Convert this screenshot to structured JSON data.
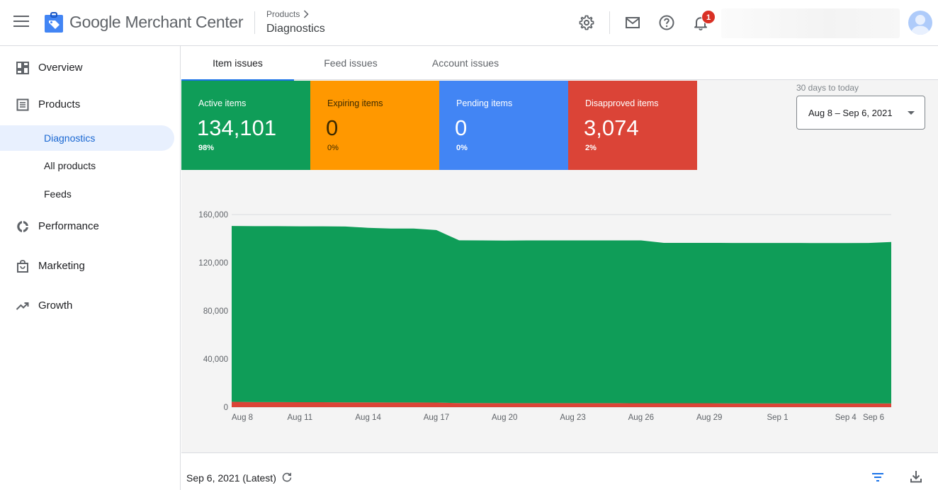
{
  "app": {
    "brand": "Google Merchant Center",
    "breadcrumb_parent": "Products",
    "breadcrumb_current": "Diagnostics",
    "notification_count": "1",
    "icons": [
      "menu-icon",
      "merchant-center-logo",
      "settings-icon",
      "mail-icon",
      "help-icon",
      "notifications-icon",
      "avatar"
    ]
  },
  "sidebar": {
    "items": [
      {
        "label": "Overview",
        "icon": "dashboard-icon"
      },
      {
        "label": "Products",
        "icon": "list-icon"
      },
      {
        "label": "Diagnostics",
        "sub": true,
        "active": true
      },
      {
        "label": "All products",
        "sub": true
      },
      {
        "label": "Feeds",
        "sub": true
      },
      {
        "label": "Performance",
        "icon": "donut-chart-icon"
      },
      {
        "label": "Marketing",
        "icon": "shopping-bag-icon"
      },
      {
        "label": "Growth",
        "icon": "trending-up-icon"
      }
    ]
  },
  "tabs": [
    "Item issues",
    "Feed issues",
    "Account issues"
  ],
  "active_tab": "Item issues",
  "cards": [
    {
      "title": "Active items",
      "value": "134,101",
      "pct": "98%",
      "color": "#0f9d58"
    },
    {
      "title": "Expiring items",
      "value": "0",
      "pct": "0%",
      "color": "#ff9800"
    },
    {
      "title": "Pending items",
      "value": "0",
      "pct": "0%",
      "color": "#4285f4"
    },
    {
      "title": "Disapproved items",
      "value": "3,074",
      "pct": "2%",
      "color": "#db4437"
    }
  ],
  "date_range": {
    "caption": "30 days to today",
    "value": "Aug 8 – Sep 6, 2021"
  },
  "chart_data": {
    "type": "area",
    "stacked": true,
    "x": [
      "Aug 8",
      "Aug 9",
      "Aug 10",
      "Aug 11",
      "Aug 12",
      "Aug 13",
      "Aug 14",
      "Aug 15",
      "Aug 16",
      "Aug 17",
      "Aug 18",
      "Aug 19",
      "Aug 20",
      "Aug 21",
      "Aug 22",
      "Aug 23",
      "Aug 24",
      "Aug 25",
      "Aug 26",
      "Aug 27",
      "Aug 28",
      "Aug 29",
      "Aug 30",
      "Aug 31",
      "Sep 1",
      "Sep 2",
      "Sep 3",
      "Sep 4",
      "Sep 5",
      "Sep 6"
    ],
    "xticks": [
      "Aug 8",
      "Aug 11",
      "Aug 14",
      "Aug 17",
      "Aug 20",
      "Aug 23",
      "Aug 26",
      "Aug 29",
      "Sep 1",
      "Sep 4",
      "Sep 6"
    ],
    "series": [
      {
        "name": "Disapproved items",
        "color": "#db4437",
        "values": [
          4500,
          4200,
          4200,
          4100,
          4100,
          4000,
          4000,
          3900,
          3900,
          3800,
          3400,
          3400,
          3300,
          3300,
          3300,
          3300,
          3300,
          3300,
          3200,
          3200,
          3200,
          3200,
          3100,
          3100,
          3100,
          3100,
          3100,
          3100,
          3100,
          3074
        ]
      },
      {
        "name": "Active items",
        "color": "#0f9d58",
        "values": [
          146000,
          146200,
          146200,
          146100,
          146100,
          146100,
          145000,
          144500,
          144500,
          143300,
          135200,
          135100,
          135100,
          135200,
          135200,
          135200,
          135200,
          135200,
          135300,
          133300,
          133300,
          133300,
          133300,
          133300,
          133300,
          133300,
          133200,
          133200,
          133300,
          134101
        ]
      }
    ],
    "yticks": [
      "0",
      "40,000",
      "80,000",
      "120,000",
      "160,000"
    ],
    "ylim": [
      0,
      160000
    ],
    "grid": "horizontal"
  },
  "footer": {
    "date": "Sep 6, 2021 (Latest)"
  }
}
